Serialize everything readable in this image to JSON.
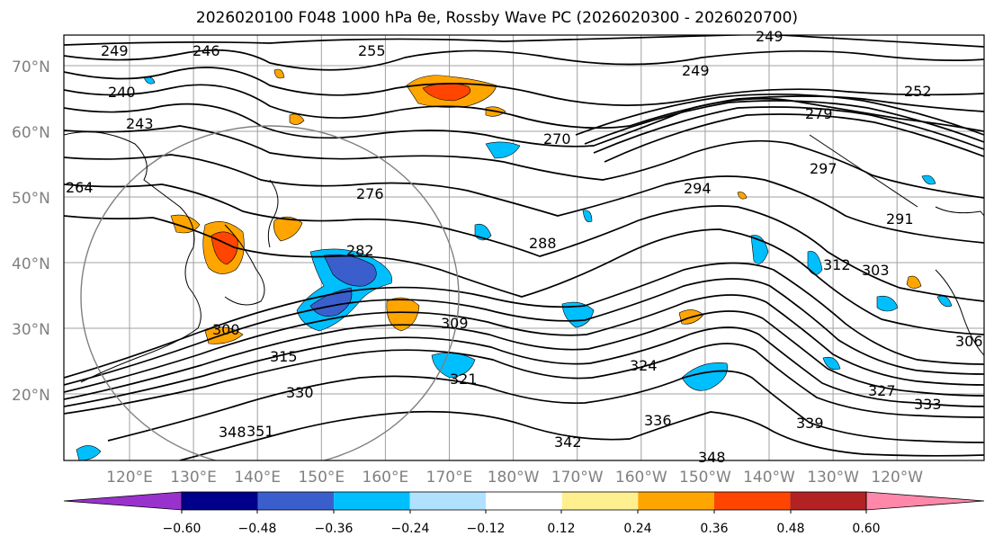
{
  "title": "2026020100 F048 1000 hPa θe, Rossby Wave PC (2026020300 - 2026020700)",
  "lat_labels": [
    "70°N",
    "60°N",
    "50°N",
    "40°N",
    "30°N",
    "20°N"
  ],
  "lon_labels": [
    "120°E",
    "130°E",
    "140°E",
    "150°E",
    "160°E",
    "170°E",
    "180°W",
    "170°W",
    "160°W",
    "150°W",
    "140°W",
    "130°W",
    "120°W"
  ],
  "contour_labels": [
    "249",
    "246",
    "240",
    "243",
    "255",
    "249",
    "252",
    "249",
    "270",
    "279",
    "264",
    "276",
    "282",
    "288",
    "294",
    "291",
    "297",
    "303",
    "300",
    "309",
    "306",
    "315",
    "321",
    "324",
    "330",
    "327",
    "333",
    "336",
    "339",
    "342",
    "348",
    "351",
    "348",
    "312"
  ],
  "colorbar": {
    "ticks": [
      "−0.60",
      "−0.48",
      "−0.36",
      "−0.24",
      "−0.12",
      "0.12",
      "0.24",
      "0.36",
      "0.48",
      "0.60"
    ],
    "colors": [
      "#9932cc",
      "#00008b",
      "#3a5fcd",
      "#00bfff",
      "#b0e2ff",
      "#ffffff",
      "#fff08f",
      "#ffa500",
      "#ff4500",
      "#b22222",
      "#ff88aa"
    ]
  }
}
